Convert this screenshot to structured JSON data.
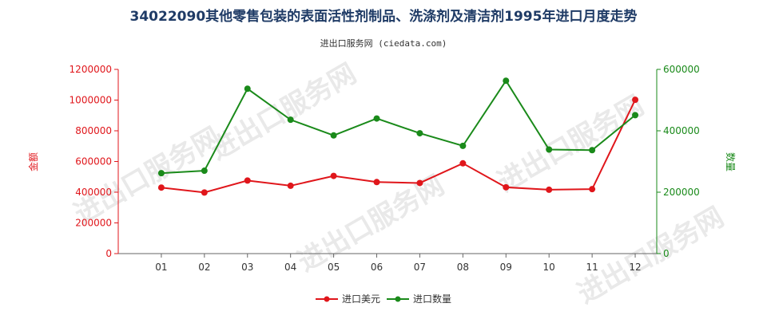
{
  "chart_data": {
    "type": "line",
    "title": "34022090其他零售包装的表面活性剂制品、洗涤剂及清洁剂1995年进口月度走势",
    "subtitle": "进出口服务网 (ciedata.com)",
    "watermark": "进出口服务网",
    "categories": [
      "01",
      "02",
      "03",
      "04",
      "05",
      "06",
      "07",
      "08",
      "09",
      "10",
      "11",
      "12"
    ],
    "y_left": {
      "label": "金额",
      "range": [
        0,
        1200000
      ],
      "ticks": [
        "0",
        "200000",
        "400000",
        "600000",
        "800000",
        "1000000",
        "1200000"
      ]
    },
    "y_right": {
      "label": "数量",
      "range": [
        0,
        600000
      ],
      "ticks": [
        "0",
        "200000",
        "400000",
        "600000"
      ]
    },
    "series": [
      {
        "name": "进口美元",
        "axis": "left",
        "color": "#e0161b",
        "values": [
          430000,
          398000,
          476000,
          442000,
          506000,
          466000,
          460000,
          588000,
          432000,
          416000,
          420000,
          1002000
        ]
      },
      {
        "name": "进口数量",
        "axis": "right",
        "color": "#1a8a1a",
        "values": [
          262000,
          270000,
          537000,
          436000,
          385000,
          440000,
          392000,
          351000,
          563000,
          339000,
          337000,
          451000
        ]
      }
    ],
    "grid": false,
    "legend_position": "bottom"
  }
}
